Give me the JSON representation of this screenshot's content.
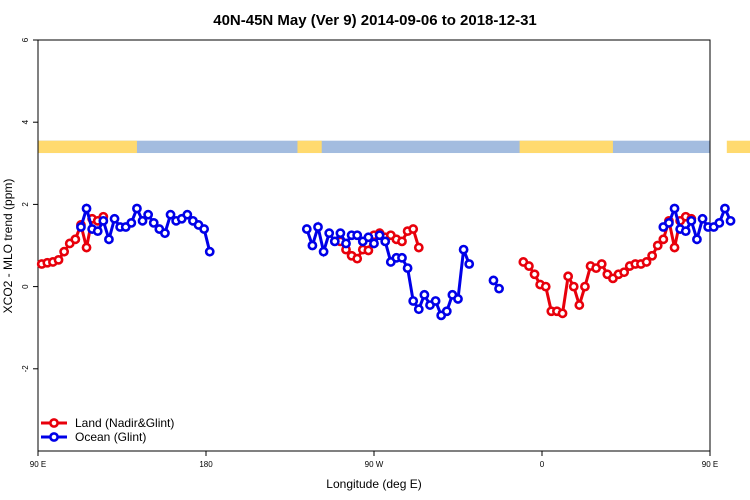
{
  "chart_data": {
    "type": "line",
    "title": "40N-45N May (Ver 9)   2014-09-06 to 2018-12-31",
    "xlabel": "Longitude (deg E)",
    "ylabel": "XCO2 - MLO trend (ppm)",
    "xlim": [
      90,
      450
    ],
    "ylim": [
      -4,
      6
    ],
    "x_ticks": [
      {
        "value": 90,
        "label": "90 E"
      },
      {
        "value": 180,
        "label": "180"
      },
      {
        "value": 270,
        "label": "90 W"
      },
      {
        "value": 360,
        "label": "0"
      },
      {
        "value": 450,
        "label": "90 E"
      },
      {
        "value": 540,
        "label": "180"
      }
    ],
    "y_ticks": [
      {
        "value": -2,
        "label": "-2"
      },
      {
        "value": 0,
        "label": "0"
      },
      {
        "value": 2,
        "label": "2"
      },
      {
        "value": 4,
        "label": "4"
      },
      {
        "value": 6,
        "label": "6"
      }
    ],
    "grid": false,
    "legend": {
      "position": "bottom-left"
    },
    "landmask_band": {
      "y_range": [
        3.25,
        3.55
      ],
      "land_color": "#FFDA6F",
      "ocean_color": "#A3BCDF",
      "land_segments": [
        [
          90,
          143
        ],
        [
          229,
          242
        ],
        [
          348,
          398
        ],
        [
          459,
          524
        ]
      ]
    },
    "series": [
      {
        "name": "Land (Nadir&Glint)",
        "color": "#E8000B",
        "points": [
          [
            92,
            0.55
          ],
          [
            95,
            0.58
          ],
          [
            98,
            0.6
          ],
          [
            101,
            0.65
          ],
          [
            104,
            0.85
          ],
          [
            107,
            1.05
          ],
          [
            110,
            1.15
          ],
          [
            113,
            1.5
          ],
          [
            116,
            0.95
          ],
          [
            119,
            1.65
          ],
          [
            122,
            1.6
          ],
          [
            125,
            1.7
          ],
          [
            252,
            1.1
          ],
          [
            255,
            0.9
          ],
          [
            258,
            0.75
          ],
          [
            261,
            0.68
          ],
          [
            264,
            0.9
          ],
          [
            267,
            0.88
          ],
          [
            270,
            1.25
          ],
          [
            273,
            1.3
          ],
          [
            276,
            1.2
          ],
          [
            279,
            1.25
          ],
          [
            282,
            1.15
          ],
          [
            285,
            1.1
          ],
          [
            288,
            1.35
          ],
          [
            291,
            1.4
          ],
          [
            294,
            0.95
          ],
          [
            350,
            0.6
          ],
          [
            353,
            0.5
          ],
          [
            356,
            0.3
          ],
          [
            359,
            0.05
          ],
          [
            362,
            0.0
          ],
          [
            365,
            -0.6
          ],
          [
            368,
            -0.6
          ],
          [
            371,
            -0.65
          ],
          [
            374,
            0.25
          ],
          [
            377,
            0.0
          ],
          [
            380,
            -0.45
          ],
          [
            383,
            0.0
          ],
          [
            386,
            0.5
          ],
          [
            389,
            0.45
          ],
          [
            392,
            0.55
          ],
          [
            395,
            0.3
          ],
          [
            398,
            0.2
          ],
          [
            401,
            0.3
          ],
          [
            404,
            0.35
          ],
          [
            407,
            0.5
          ],
          [
            410,
            0.55
          ],
          [
            413,
            0.55
          ],
          [
            416,
            0.6
          ],
          [
            419,
            0.75
          ],
          [
            422,
            1.0
          ],
          [
            425,
            1.15
          ],
          [
            428,
            1.6
          ],
          [
            431,
            0.95
          ],
          [
            434,
            1.6
          ],
          [
            437,
            1.7
          ],
          [
            440,
            1.65
          ]
        ]
      },
      {
        "name": "Ocean (Glint)",
        "color": "#0000E8",
        "points": [
          [
            113,
            1.45
          ],
          [
            116,
            1.9
          ],
          [
            119,
            1.4
          ],
          [
            122,
            1.35
          ],
          [
            125,
            1.6
          ],
          [
            128,
            1.15
          ],
          [
            131,
            1.65
          ],
          [
            134,
            1.45
          ],
          [
            137,
            1.45
          ],
          [
            140,
            1.55
          ],
          [
            143,
            1.9
          ],
          [
            146,
            1.6
          ],
          [
            149,
            1.75
          ],
          [
            152,
            1.55
          ],
          [
            155,
            1.4
          ],
          [
            158,
            1.3
          ],
          [
            161,
            1.75
          ],
          [
            164,
            1.6
          ],
          [
            167,
            1.65
          ],
          [
            170,
            1.75
          ],
          [
            173,
            1.6
          ],
          [
            176,
            1.5
          ],
          [
            179,
            1.4
          ],
          [
            182,
            0.85
          ],
          [
            234,
            1.4
          ],
          [
            237,
            1.0
          ],
          [
            240,
            1.45
          ],
          [
            243,
            0.85
          ],
          [
            246,
            1.3
          ],
          [
            249,
            1.1
          ],
          [
            252,
            1.3
          ],
          [
            255,
            1.05
          ],
          [
            258,
            1.25
          ],
          [
            261,
            1.25
          ],
          [
            264,
            1.1
          ],
          [
            267,
            1.2
          ],
          [
            270,
            1.05
          ],
          [
            273,
            1.25
          ],
          [
            276,
            1.1
          ],
          [
            279,
            0.6
          ],
          [
            282,
            0.7
          ],
          [
            285,
            0.7
          ],
          [
            288,
            0.45
          ],
          [
            291,
            -0.35
          ],
          [
            294,
            -0.55
          ],
          [
            297,
            -0.2
          ],
          [
            300,
            -0.45
          ],
          [
            303,
            -0.35
          ],
          [
            306,
            -0.7
          ],
          [
            309,
            -0.6
          ],
          [
            312,
            -0.2
          ],
          [
            315,
            -0.3
          ],
          [
            318,
            0.9
          ],
          [
            321,
            0.55
          ],
          [
            334,
            0.15
          ],
          [
            337,
            -0.05
          ],
          [
            425,
            1.45
          ],
          [
            428,
            1.55
          ],
          [
            431,
            1.9
          ],
          [
            434,
            1.4
          ],
          [
            437,
            1.35
          ],
          [
            440,
            1.6
          ],
          [
            443,
            1.15
          ],
          [
            446,
            1.65
          ],
          [
            449,
            1.45
          ],
          [
            452,
            1.45
          ],
          [
            455,
            1.55
          ],
          [
            458,
            1.9
          ],
          [
            461,
            1.6
          ]
        ]
      }
    ]
  }
}
